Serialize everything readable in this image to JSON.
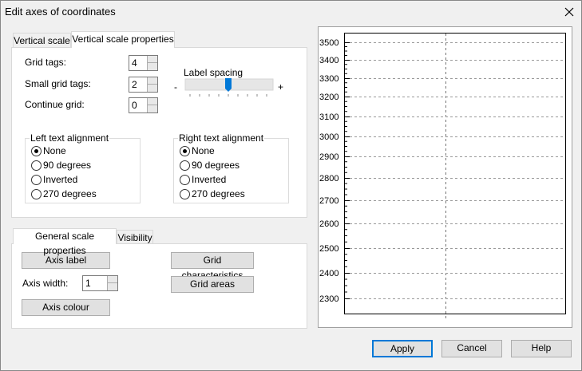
{
  "window": {
    "title": "Edit axes of coordinates"
  },
  "top_tabs": [
    "Vertical scale",
    "Vertical scale properties"
  ],
  "grid_settings": [
    {
      "label": "Grid tags:",
      "value": 4
    },
    {
      "label": "Small grid tags:",
      "value": 2
    },
    {
      "label": "Continue grid:",
      "value": 0
    }
  ],
  "label_spacing": {
    "label": "Label spacing",
    "minus": "-",
    "plus": "+"
  },
  "left_alignment": {
    "title": "Left text alignment",
    "options": [
      "None",
      "90 degrees",
      "Inverted",
      "270 degrees"
    ]
  },
  "right_alignment": {
    "title": "Right text alignment",
    "options": [
      "None",
      "90 degrees",
      "Inverted",
      "270 degrees"
    ]
  },
  "bottom_tabs": [
    "General scale properties",
    "Visibility"
  ],
  "general": {
    "axis_label": "Axis label",
    "grid_characteristics": "Grid characteristics",
    "axis_width_label": "Axis width:",
    "axis_width_value": 1,
    "grid_areas": "Grid areas",
    "axis_colour": "Axis colour"
  },
  "preview": {
    "yticks": [
      3500,
      3400,
      3300,
      3200,
      3100,
      3000,
      2900,
      2800,
      2700,
      2600,
      2500,
      2400,
      2300
    ]
  },
  "dialog_buttons": [
    "Apply",
    "Cancel",
    "Help"
  ]
}
